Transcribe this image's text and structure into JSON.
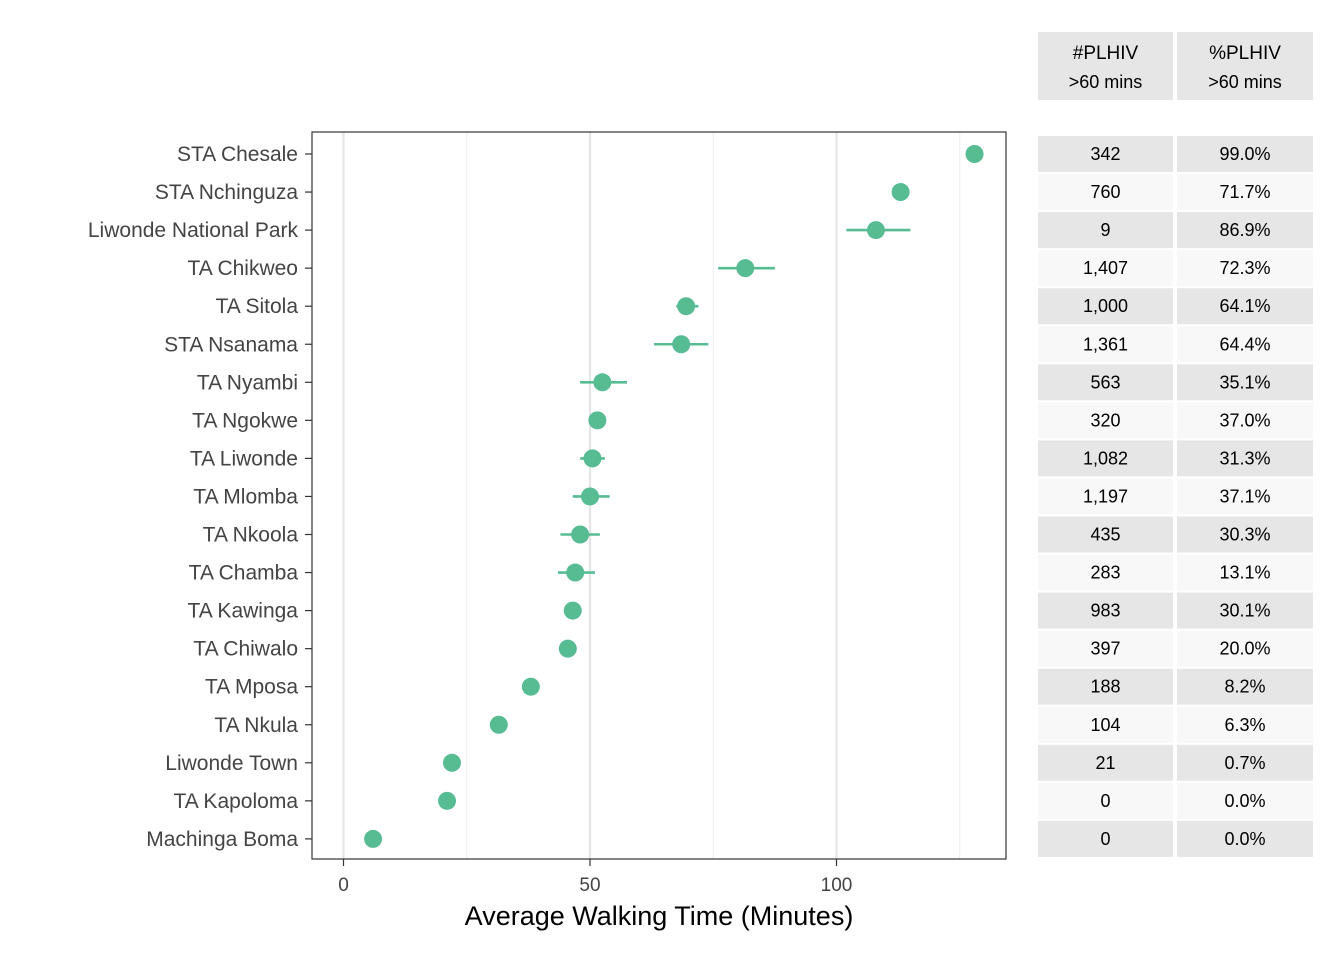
{
  "chart_data": {
    "type": "scatter",
    "subtype": "dot-with-errorbars",
    "xlabel": "Average Walking Time (Minutes)",
    "ylabel": "",
    "xlim": [
      -6.25,
      134.5
    ],
    "x_ticks": [
      0,
      50,
      100
    ],
    "x_minor_gridlines": [
      25,
      75,
      125
    ],
    "grid": true,
    "legend": "none",
    "point_color": "#58BC93",
    "categories": [
      "STA Chesale",
      "STA Nchinguza",
      "Liwonde National Park",
      "TA Chikweo",
      "TA Sitola",
      "STA Nsanama",
      "TA Nyambi",
      "TA Ngokwe",
      "TA Liwonde",
      "TA Mlomba",
      "TA Nkoola",
      "TA Chamba",
      "TA Kawinga",
      "TA Chiwalo",
      "TA Mposa",
      "TA Nkula",
      "Liwonde Town",
      "TA Kapoloma",
      "Machinga Boma"
    ],
    "values": [
      128,
      113,
      108,
      81.5,
      69.5,
      68.5,
      52.5,
      51.5,
      50.5,
      50,
      48,
      47,
      46.5,
      45.5,
      38,
      31.5,
      22,
      21,
      6
    ],
    "error_low": [
      null,
      null,
      102,
      76,
      67.5,
      63,
      48,
      null,
      48,
      46.5,
      44,
      43.5,
      null,
      null,
      null,
      null,
      null,
      null,
      null
    ],
    "error_high": [
      null,
      null,
      115,
      87.5,
      72,
      74,
      57.5,
      null,
      53,
      54,
      52,
      51,
      null,
      null,
      null,
      null,
      null,
      null,
      null
    ]
  },
  "side_table": {
    "headers": [
      {
        "title": "#PLHIV",
        "subtitle": ">60 mins"
      },
      {
        "title": "%PLHIV",
        "subtitle": ">60 mins"
      }
    ],
    "rows": [
      [
        "342",
        "99.0%"
      ],
      [
        "760",
        "71.7%"
      ],
      [
        "9",
        "86.9%"
      ],
      [
        "1,407",
        "72.3%"
      ],
      [
        "1,000",
        "64.1%"
      ],
      [
        "1,361",
        "64.4%"
      ],
      [
        "563",
        "35.1%"
      ],
      [
        "320",
        "37.0%"
      ],
      [
        "1,082",
        "31.3%"
      ],
      [
        "1,197",
        "37.1%"
      ],
      [
        "435",
        "30.3%"
      ],
      [
        "283",
        "13.1%"
      ],
      [
        "983",
        "30.1%"
      ],
      [
        "397",
        "20.0%"
      ],
      [
        "188",
        "8.2%"
      ],
      [
        "104",
        "6.3%"
      ],
      [
        "21",
        "0.7%"
      ],
      [
        "0",
        "0.0%"
      ],
      [
        "0",
        "0.0%"
      ]
    ],
    "stripe_color": "#E6E6E6"
  }
}
